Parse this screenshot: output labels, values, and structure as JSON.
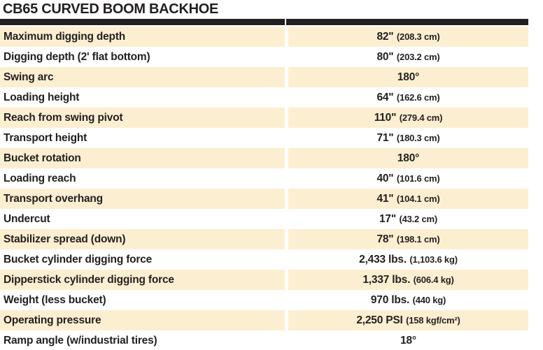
{
  "page": {
    "title": "CB65 CURVED BOOM BACKHOE"
  },
  "colors": {
    "accent_row": "#FCEFD1",
    "bar": "#231F20",
    "text": "#231F20",
    "page_bg": "#FFFFFF"
  },
  "table": {
    "rows": [
      {
        "label": "Maximum digging depth",
        "value": "82\"",
        "metric": "(208.3 cm)"
      },
      {
        "label": "Digging depth (2' flat bottom)",
        "value": "80\"",
        "metric": "(203.2 cm)"
      },
      {
        "label": "Swing arc",
        "value": "180°",
        "metric": ""
      },
      {
        "label": "Loading height",
        "value": "64\"",
        "metric": "(162.6 cm)"
      },
      {
        "label": "Reach from swing pivot",
        "value": "110\"",
        "metric": "(279.4 cm)"
      },
      {
        "label": "Transport height",
        "value": "71\"",
        "metric": "(180.3 cm)"
      },
      {
        "label": "Bucket rotation",
        "value": "180°",
        "metric": ""
      },
      {
        "label": "Loading reach",
        "value": "40\"",
        "metric": "(101.6 cm)"
      },
      {
        "label": "Transport overhang",
        "value": "41\"",
        "metric": "(104.1 cm)"
      },
      {
        "label": "Undercut",
        "value": "17\"",
        "metric": "(43.2 cm)"
      },
      {
        "label": "Stabilizer spread (down)",
        "value": "78\"",
        "metric": "(198.1 cm)"
      },
      {
        "label": "Bucket cylinder digging force",
        "value": "2,433 lbs.",
        "metric": "(1,103.6 kg)"
      },
      {
        "label": "Dipperstick cylinder digging force",
        "value": "1,337 lbs.",
        "metric": "(606.4 kg)"
      },
      {
        "label": "Weight (less bucket)",
        "value": "970 lbs.",
        "metric": "(440 kg)"
      },
      {
        "label": "Operating pressure",
        "value": "2,250 PSI",
        "metric": "(158 kgf/cm²)"
      },
      {
        "label": "Ramp angle (w/industrial tires)",
        "value": "18°",
        "metric": ""
      }
    ]
  }
}
